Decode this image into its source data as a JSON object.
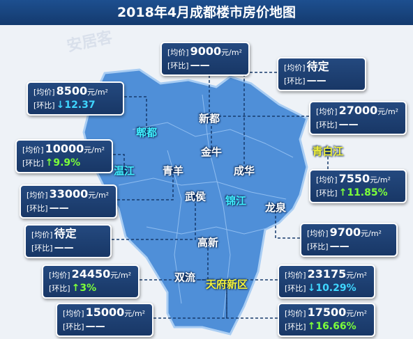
{
  "title": "2018年4月成都楼市房价地图",
  "watermark": "安居客",
  "price_label": "[均价]",
  "change_label": "[环比]",
  "unit": "元/m²",
  "districts": [
    {
      "label": "新都",
      "color": "#ffffff"
    },
    {
      "label": "郫都",
      "color": "#3ff0ff"
    },
    {
      "label": "金牛",
      "color": "#ffffff"
    },
    {
      "label": "温江",
      "color": "#3ff0ff"
    },
    {
      "label": "青羊",
      "color": "#ffffff"
    },
    {
      "label": "成华",
      "color": "#ffffff"
    },
    {
      "label": "青白江",
      "color": "#f4f23a"
    },
    {
      "label": "武侯",
      "color": "#ffffff"
    },
    {
      "label": "锦江",
      "color": "#3ff0ff"
    },
    {
      "label": "龙泉",
      "color": "#ffffff"
    },
    {
      "label": "高新",
      "color": "#ffffff"
    },
    {
      "label": "双流",
      "color": "#ffffff"
    },
    {
      "label": "天府新区",
      "color": "#f4f23a"
    }
  ],
  "price_boxes": [
    {
      "price": "9000",
      "change": "——",
      "change_color": "#ffffff"
    },
    {
      "price": "8500",
      "change": "↓12.37",
      "change_color": "#3fd6ff"
    },
    {
      "price": "待定",
      "change": "——",
      "change_color": "#ffffff"
    },
    {
      "price": "27000",
      "change": "——",
      "change_color": "#ffffff"
    },
    {
      "price": "10000",
      "change": "↑9.9%",
      "change_color": "#7cff3a"
    },
    {
      "price": "7550",
      "change": "↑11.85%",
      "change_color": "#7cff3a"
    },
    {
      "price": "33000",
      "change": "——",
      "change_color": "#ffffff"
    },
    {
      "price": "待定",
      "change": "——",
      "change_color": "#ffffff"
    },
    {
      "price": "9700",
      "change": "——",
      "change_color": "#ffffff"
    },
    {
      "price": "24450",
      "change": "↑3%",
      "change_color": "#7cff3a"
    },
    {
      "price": "23175",
      "change": "↓10.29%",
      "change_color": "#3fd6ff"
    },
    {
      "price": "15000",
      "change": "——",
      "change_color": "#ffffff"
    },
    {
      "price": "17500",
      "change": "↑16.66%",
      "change_color": "#7cff3a"
    }
  ]
}
